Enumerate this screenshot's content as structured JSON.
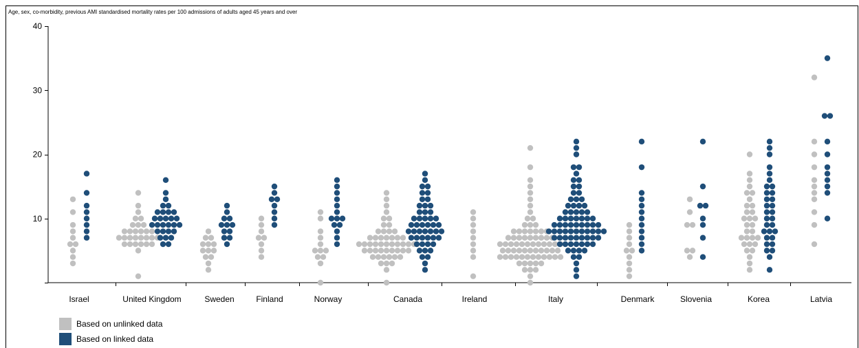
{
  "chart_data": {
    "type": "scatter",
    "title": "Age, sex, co-morbidity, previous AMI standardised mortality rates per 100 admissions of adults aged 45 years and over",
    "xlabel": "",
    "ylabel": "",
    "ylim": [
      0,
      40
    ],
    "yticks": [
      10,
      20,
      30,
      40
    ],
    "grid": false,
    "legend_position": "bottom-left",
    "categories": [
      "Israel",
      "United Kingdom",
      "Sweden",
      "Finland",
      "Norway",
      "Canada",
      "Ireland",
      "Italy",
      "Denmark",
      "Slovenia",
      "Korea",
      "Latvia"
    ],
    "series": [
      {
        "name": "Based on unlinked data",
        "color": "#c0c0c0",
        "points": {
          "Israel": [
            [
              3,
              1
            ],
            [
              4,
              1
            ],
            [
              5,
              1
            ],
            [
              6,
              2
            ],
            [
              7,
              1
            ],
            [
              8,
              1
            ],
            [
              9,
              1
            ],
            [
              11,
              1
            ],
            [
              13,
              1
            ]
          ],
          "United Kingdom": [
            [
              1,
              1
            ],
            [
              5,
              1
            ],
            [
              6,
              6
            ],
            [
              7,
              8
            ],
            [
              8,
              6
            ],
            [
              9,
              3
            ],
            [
              10,
              2
            ],
            [
              11,
              1
            ],
            [
              12,
              1
            ],
            [
              14,
              1
            ]
          ],
          "Sweden": [
            [
              2,
              1
            ],
            [
              3,
              1
            ],
            [
              4,
              2
            ],
            [
              5,
              3
            ],
            [
              6,
              3
            ],
            [
              7,
              2
            ],
            [
              8,
              1
            ]
          ],
          "Finland": [
            [
              4,
              1
            ],
            [
              5,
              1
            ],
            [
              6,
              1
            ],
            [
              7,
              2
            ],
            [
              8,
              1
            ],
            [
              9,
              1
            ],
            [
              10,
              1
            ]
          ],
          "Norway": [
            [
              0,
              1
            ],
            [
              3,
              1
            ],
            [
              4,
              2
            ],
            [
              5,
              3
            ],
            [
              6,
              1
            ],
            [
              7,
              1
            ],
            [
              8,
              1
            ],
            [
              10,
              1
            ],
            [
              11,
              1
            ]
          ],
          "Canada": [
            [
              0,
              1
            ],
            [
              2,
              1
            ],
            [
              3,
              3
            ],
            [
              4,
              6
            ],
            [
              5,
              9
            ],
            [
              6,
              11
            ],
            [
              7,
              7
            ],
            [
              8,
              4
            ],
            [
              9,
              2
            ],
            [
              10,
              2
            ],
            [
              11,
              1
            ],
            [
              12,
              1
            ],
            [
              13,
              1
            ],
            [
              14,
              1
            ]
          ],
          "Ireland": [
            [
              1,
              1
            ],
            [
              4,
              1
            ],
            [
              5,
              1
            ],
            [
              6,
              1
            ],
            [
              7,
              1
            ],
            [
              8,
              1
            ],
            [
              9,
              1
            ],
            [
              10,
              1
            ],
            [
              11,
              1
            ]
          ],
          "Italy": [
            [
              0,
              1
            ],
            [
              1,
              1
            ],
            [
              2,
              3
            ],
            [
              3,
              5
            ],
            [
              4,
              12
            ],
            [
              5,
              11
            ],
            [
              6,
              12
            ],
            [
              7,
              9
            ],
            [
              8,
              7
            ],
            [
              9,
              3
            ],
            [
              10,
              2
            ],
            [
              11,
              1
            ],
            [
              12,
              1
            ],
            [
              13,
              1
            ],
            [
              14,
              1
            ],
            [
              15,
              1
            ],
            [
              16,
              1
            ],
            [
              18,
              1
            ],
            [
              21,
              1
            ]
          ],
          "Denmark": [
            [
              1,
              1
            ],
            [
              2,
              1
            ],
            [
              3,
              1
            ],
            [
              4,
              1
            ],
            [
              5,
              2
            ],
            [
              6,
              1
            ],
            [
              7,
              1
            ],
            [
              8,
              1
            ],
            [
              9,
              1
            ]
          ],
          "Slovenia": [
            [
              4,
              1
            ],
            [
              5,
              2
            ],
            [
              9,
              2
            ],
            [
              11,
              1
            ],
            [
              13,
              1
            ]
          ],
          "Korea": [
            [
              2,
              1
            ],
            [
              3,
              1
            ],
            [
              4,
              1
            ],
            [
              5,
              2
            ],
            [
              6,
              3
            ],
            [
              7,
              4
            ],
            [
              8,
              2
            ],
            [
              9,
              2
            ],
            [
              10,
              3
            ],
            [
              11,
              2
            ],
            [
              12,
              2
            ],
            [
              13,
              1
            ],
            [
              14,
              2
            ],
            [
              15,
              1
            ],
            [
              16,
              1
            ],
            [
              17,
              1
            ],
            [
              20,
              1
            ]
          ],
          "Latvia": [
            [
              6,
              1
            ],
            [
              9,
              1
            ],
            [
              11,
              1
            ],
            [
              13,
              1
            ],
            [
              14,
              1
            ],
            [
              15,
              1
            ],
            [
              16,
              1
            ],
            [
              18,
              1
            ],
            [
              20,
              1
            ],
            [
              22,
              1
            ],
            [
              32,
              1
            ]
          ]
        }
      },
      {
        "name": "Based on linked data",
        "color": "#1f4e79",
        "points": {
          "Israel": [
            [
              7,
              1
            ],
            [
              8,
              1
            ],
            [
              9,
              1
            ],
            [
              10,
              1
            ],
            [
              11,
              1
            ],
            [
              12,
              1
            ],
            [
              14,
              1
            ],
            [
              17,
              1
            ]
          ],
          "United Kingdom": [
            [
              6,
              2
            ],
            [
              7,
              3
            ],
            [
              8,
              4
            ],
            [
              9,
              6
            ],
            [
              10,
              5
            ],
            [
              11,
              4
            ],
            [
              12,
              2
            ],
            [
              13,
              1
            ],
            [
              14,
              1
            ],
            [
              16,
              1
            ]
          ],
          "Sweden": [
            [
              6,
              1
            ],
            [
              7,
              2
            ],
            [
              8,
              2
            ],
            [
              9,
              3
            ],
            [
              10,
              2
            ],
            [
              11,
              1
            ],
            [
              12,
              1
            ]
          ],
          "Finland": [
            [
              9,
              1
            ],
            [
              10,
              1
            ],
            [
              11,
              1
            ],
            [
              12,
              1
            ],
            [
              13,
              2
            ],
            [
              14,
              1
            ],
            [
              15,
              1
            ]
          ],
          "Norway": [
            [
              6,
              1
            ],
            [
              7,
              1
            ],
            [
              8,
              1
            ],
            [
              9,
              2
            ],
            [
              10,
              3
            ],
            [
              11,
              1
            ],
            [
              12,
              1
            ],
            [
              13,
              1
            ],
            [
              14,
              1
            ],
            [
              15,
              1
            ],
            [
              16,
              1
            ]
          ],
          "Canada": [
            [
              2,
              1
            ],
            [
              3,
              1
            ],
            [
              4,
              2
            ],
            [
              5,
              3
            ],
            [
              6,
              4
            ],
            [
              7,
              6
            ],
            [
              8,
              7
            ],
            [
              9,
              6
            ],
            [
              10,
              5
            ],
            [
              11,
              3
            ],
            [
              12,
              3
            ],
            [
              13,
              2
            ],
            [
              14,
              2
            ],
            [
              15,
              2
            ],
            [
              16,
              1
            ],
            [
              17,
              1
            ]
          ],
          "Ireland": [],
          "Italy": [
            [
              1,
              1
            ],
            [
              2,
              1
            ],
            [
              3,
              1
            ],
            [
              4,
              2
            ],
            [
              5,
              4
            ],
            [
              6,
              7
            ],
            [
              7,
              9
            ],
            [
              8,
              11
            ],
            [
              9,
              9
            ],
            [
              10,
              7
            ],
            [
              11,
              5
            ],
            [
              12,
              4
            ],
            [
              13,
              3
            ],
            [
              14,
              2
            ],
            [
              15,
              2
            ],
            [
              16,
              2
            ],
            [
              17,
              1
            ],
            [
              18,
              2
            ],
            [
              20,
              1
            ],
            [
              21,
              1
            ],
            [
              22,
              1
            ]
          ],
          "Denmark": [
            [
              5,
              1
            ],
            [
              6,
              1
            ],
            [
              7,
              1
            ],
            [
              8,
              1
            ],
            [
              9,
              1
            ],
            [
              10,
              1
            ],
            [
              11,
              1
            ],
            [
              12,
              1
            ],
            [
              13,
              1
            ],
            [
              14,
              1
            ],
            [
              18,
              1
            ],
            [
              22,
              1
            ]
          ],
          "Slovenia": [
            [
              4,
              1
            ],
            [
              7,
              1
            ],
            [
              9,
              1
            ],
            [
              10,
              1
            ],
            [
              12,
              2
            ],
            [
              15,
              1
            ],
            [
              22,
              1
            ]
          ],
          "Korea": [
            [
              2,
              1
            ],
            [
              4,
              1
            ],
            [
              5,
              2
            ],
            [
              6,
              2
            ],
            [
              7,
              2
            ],
            [
              8,
              3
            ],
            [
              9,
              2
            ],
            [
              10,
              2
            ],
            [
              11,
              2
            ],
            [
              12,
              2
            ],
            [
              13,
              2
            ],
            [
              14,
              2
            ],
            [
              15,
              2
            ],
            [
              16,
              1
            ],
            [
              17,
              1
            ],
            [
              18,
              1
            ],
            [
              20,
              1
            ],
            [
              21,
              1
            ],
            [
              22,
              1
            ]
          ],
          "Latvia": [
            [
              10,
              1
            ],
            [
              14,
              1
            ],
            [
              15,
              1
            ],
            [
              16,
              1
            ],
            [
              17,
              1
            ],
            [
              18,
              1
            ],
            [
              20,
              1
            ],
            [
              22,
              1
            ],
            [
              26,
              2
            ],
            [
              35,
              1
            ]
          ]
        }
      }
    ]
  },
  "legend": {
    "unlinked_label": "Based on unlinked data",
    "linked_label": "Based on linked data"
  }
}
